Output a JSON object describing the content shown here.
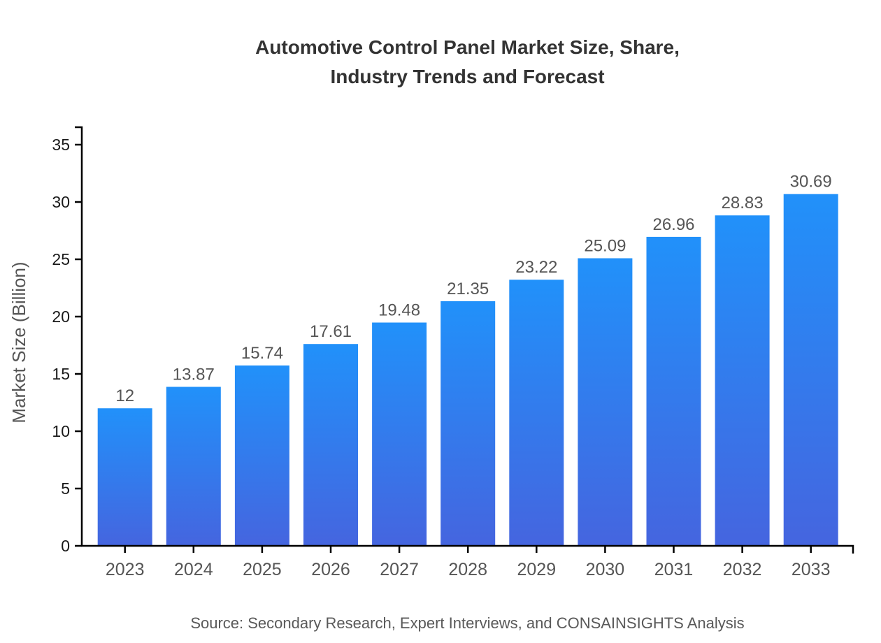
{
  "title_lines": [
    "Automotive Control Panel Market Size, Share,",
    "Industry Trends and Forecast"
  ],
  "source_note": "Source: Secondary Research, Expert Interviews, and CONSAINSIGHTS Analysis",
  "chart_data": {
    "type": "bar",
    "title": "Automotive Control Panel Market Size, Share, Industry Trends and Forecast",
    "categories": [
      "2023",
      "2024",
      "2025",
      "2026",
      "2027",
      "2028",
      "2029",
      "2030",
      "2031",
      "2032",
      "2033"
    ],
    "values": [
      12,
      13.87,
      15.74,
      17.61,
      19.48,
      21.35,
      23.22,
      25.09,
      26.96,
      28.83,
      30.69
    ],
    "value_labels": [
      "12",
      "13.87",
      "15.74",
      "17.61",
      "19.48",
      "21.35",
      "23.22",
      "25.09",
      "26.96",
      "28.83",
      "30.69"
    ],
    "xlabel": "",
    "ylabel": "Market Size (Billion)",
    "ylim": [
      0,
      36.5
    ],
    "yticks": [
      0,
      5,
      10,
      15,
      20,
      25,
      30,
      35
    ],
    "grid": false,
    "legend": false,
    "colors": {
      "bar_gradient_top": "#2191FA",
      "bar_gradient_bottom": "#4565DF",
      "axis": "#000000",
      "y_tick_label": "#1a1a1a",
      "x_tick_label": "#555555",
      "value_label": "#555555",
      "axis_title": "#555555",
      "title": "#333333",
      "source": "#595959"
    }
  }
}
